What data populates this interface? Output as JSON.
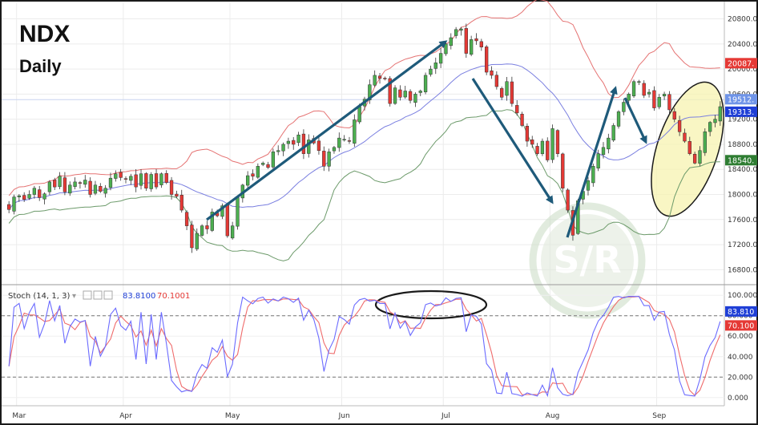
{
  "chart_data": {
    "type": "candlestick",
    "title": "NDX",
    "subtitle": "Daily",
    "price_axis": {
      "ylim": [
        16600,
        21050
      ],
      "ticks": [
        "20800.0",
        "20400.0",
        "20000.0",
        "19600.0",
        "19200.0",
        "18800.0",
        "18400.0",
        "18000.0",
        "17600.0",
        "17200.0",
        "16800.0"
      ],
      "tick_values": [
        20800,
        20400,
        20000,
        19600,
        19200,
        18800,
        18400,
        18000,
        17600,
        17200,
        16800
      ]
    },
    "x_axis": {
      "months": [
        {
          "label": "Mar",
          "index": 2
        },
        {
          "label": "Apr",
          "index": 23
        },
        {
          "label": "May",
          "index": 44
        },
        {
          "label": "Jun",
          "index": 66
        },
        {
          "label": "Jul",
          "index": 86
        },
        {
          "label": "Aug",
          "index": 107
        },
        {
          "label": "Sep",
          "index": 128
        }
      ]
    },
    "price_badges": [
      {
        "label": "20087.",
        "value": 20087,
        "color": "#e53935"
      },
      {
        "label": "19512.",
        "value": 19512,
        "color": "#6f94e8"
      },
      {
        "label": "19313.",
        "value": 19313,
        "color": "#1f3fd6"
      },
      {
        "label": "18540.",
        "value": 18540,
        "color": "#2e7d32"
      }
    ],
    "closes": [
      17760,
      17960,
      17980,
      17920,
      18000,
      18100,
      17950,
      18010,
      18200,
      18120,
      18290,
      18040,
      18150,
      18200,
      18180,
      18230,
      18000,
      18150,
      18050,
      18100,
      18260,
      18330,
      18270,
      18250,
      18290,
      18120,
      18330,
      18100,
      18320,
      18120,
      18330,
      18190,
      18000,
      17970,
      17750,
      17500,
      17150,
      17380,
      17500,
      17450,
      17720,
      17660,
      17820,
      17340,
      17500,
      17950,
      18150,
      18300,
      18290,
      18450,
      18500,
      18430,
      18680,
      18700,
      18800,
      18850,
      18800,
      18950,
      18650,
      18870,
      18820,
      18700,
      18450,
      18680,
      18750,
      18900,
      18880,
      18850,
      19190,
      19400,
      19520,
      19750,
      19900,
      19850,
      19850,
      19450,
      19700,
      19550,
      19650,
      19500,
      19600,
      19650,
      19900,
      20000,
      20100,
      20250,
      20400,
      20500,
      20630,
      20640,
      20250,
      20470,
      20450,
      20350,
      19950,
      19900,
      19720,
      19550,
      19800,
      19450,
      19300,
      19100,
      18850,
      18800,
      18650,
      18850,
      18550,
      19050,
      18650,
      18100,
      17750,
      17350,
      17900,
      18050,
      18220,
      18450,
      18650,
      18750,
      18900,
      19100,
      19320,
      19470,
      19600,
      19800,
      19800,
      19580,
      19630,
      19380,
      19550,
      19600,
      19350,
      19200,
      19000,
      18850,
      18650,
      18500,
      18700,
      19000,
      19150,
      19200,
      19400
    ],
    "stoch_axis": {
      "ylim": [
        -8,
        108
      ],
      "ticks": [
        "100.000",
        "80.000",
        "60.000",
        "40.000",
        "20.000",
        "0.000"
      ],
      "tick_values": [
        100,
        80,
        60,
        40,
        20,
        0
      ]
    },
    "stoch_legend": {
      "label": "Stoch (14, 1, 3)",
      "k_value": "83.8100",
      "d_value": "70.1001"
    },
    "stoch_badges": [
      {
        "label": "83.810",
        "value": 83.81,
        "color": "#1f3fd6"
      },
      {
        "label": "70.100",
        "value": 70.1,
        "color": "#e53935"
      }
    ],
    "stoch_levels": [
      80,
      20
    ],
    "bollinger": {
      "period": 20,
      "std": 2
    },
    "watermark": "S/R"
  },
  "colors": {
    "up": "#4caf50",
    "down": "#e53935",
    "upper_band": "#e57373",
    "middle_band": "#7a7fe0",
    "lower_band": "#6c9a6a",
    "stoch_k": "#6b6bff",
    "stoch_d": "#ef6b6b",
    "arrow": "#1e5a7a",
    "highlight_fill": "#f7f3b0"
  }
}
